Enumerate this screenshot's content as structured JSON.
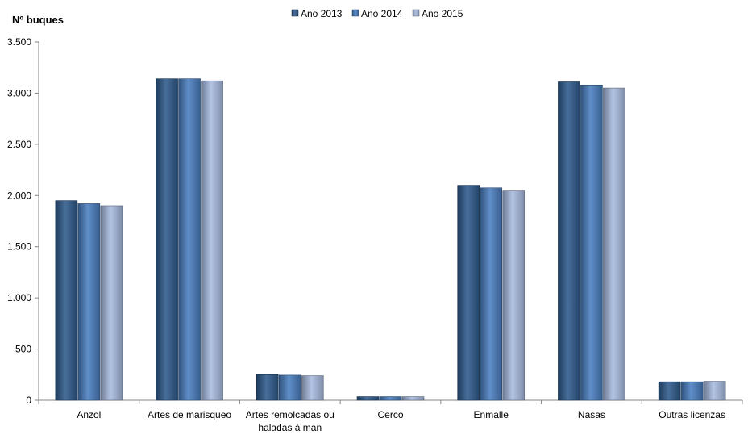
{
  "chart_data": {
    "type": "bar",
    "title": "",
    "ylabel": "Nº  buques",
    "xlabel": "",
    "categories": [
      "Anzol",
      "Artes de marisqueo",
      "Artes remolcadas ou haladas á man",
      "Cerco",
      "Enmalle",
      "Nasas",
      "Outras licenzas"
    ],
    "category_lines": [
      [
        "Anzol"
      ],
      [
        "Artes de marisqueo"
      ],
      [
        "Artes remolcadas ou",
        "haladas á man"
      ],
      [
        "Cerco"
      ],
      [
        "Enmalle"
      ],
      [
        "Nasas"
      ],
      [
        "Outras licenzas"
      ]
    ],
    "series": [
      {
        "name": "Ano 2013",
        "values": [
          1950,
          3140,
          250,
          35,
          2100,
          3110,
          180
        ],
        "color": "#2E5A8C"
      },
      {
        "name": "Ano 2014",
        "values": [
          1920,
          3140,
          245,
          35,
          2075,
          3080,
          180
        ],
        "color": "#4A7FC0"
      },
      {
        "name": "Ano 2015",
        "values": [
          1900,
          3120,
          240,
          35,
          2045,
          3050,
          185
        ],
        "color": "#A9BCE0"
      }
    ],
    "ylim": [
      0,
      3500
    ],
    "yticks": [
      0,
      500,
      1000,
      1500,
      2000,
      2500,
      3000,
      3500
    ],
    "ytick_labels": [
      "0",
      "500",
      "1.000",
      "1.500",
      "2.000",
      "2.500",
      "3.000",
      "3.500"
    ],
    "grid": false,
    "legend_position": "top-center"
  }
}
